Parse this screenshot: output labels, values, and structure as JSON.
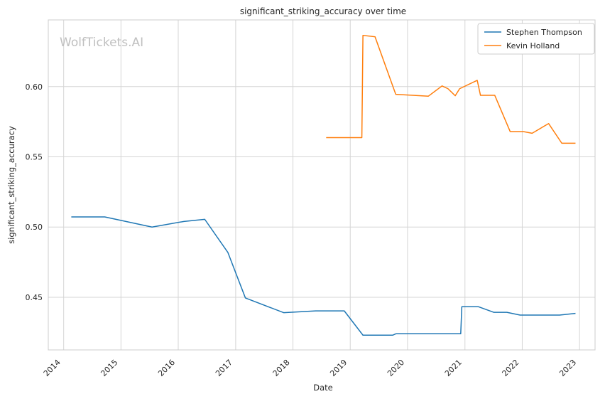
{
  "chart_data": {
    "type": "line",
    "title": "significant_striking_accuracy over time",
    "xlabel": "Date",
    "ylabel": "significant_striking_accuracy",
    "watermark": "WolfTickets.AI",
    "x_ticks": [
      "2014",
      "2015",
      "2016",
      "2017",
      "2018",
      "2019",
      "2020",
      "2021",
      "2022",
      "2023"
    ],
    "y_ticks": [
      "0.45",
      "0.50",
      "0.55",
      "0.60"
    ],
    "xlim": [
      "2013-09-25",
      "2023-04-10"
    ],
    "ylim": [
      0.4125,
      0.6475
    ],
    "grid": true,
    "legend_position": "top-right",
    "series": [
      {
        "name": "Stephen Thompson",
        "color": "#1f77b4",
        "points": [
          [
            "2014-02-22",
            0.5072
          ],
          [
            "2014-09-20",
            0.5072
          ],
          [
            "2015-07-18",
            0.5
          ],
          [
            "2016-02-06",
            0.504
          ],
          [
            "2016-06-18",
            0.5055
          ],
          [
            "2016-11-12",
            0.482
          ],
          [
            "2017-03-04",
            0.4495
          ],
          [
            "2017-11-04",
            0.439
          ],
          [
            "2018-05-26",
            0.4403
          ],
          [
            "2018-11-24",
            0.4403
          ],
          [
            "2019-03-23",
            0.423
          ],
          [
            "2019-09-28",
            0.423
          ],
          [
            "2019-10-19",
            0.424
          ],
          [
            "2020-12-05",
            0.424
          ],
          [
            "2020-12-12",
            0.4433
          ],
          [
            "2021-03-27",
            0.4433
          ],
          [
            "2021-07-03",
            0.4393
          ],
          [
            "2021-09-25",
            0.4393
          ],
          [
            "2021-12-18",
            0.4373
          ],
          [
            "2022-08-27",
            0.4373
          ],
          [
            "2022-12-03",
            0.4385
          ]
        ]
      },
      {
        "name": "Kevin Holland",
        "color": "#ff7f0e",
        "points": [
          [
            "2018-08-04",
            0.5637
          ],
          [
            "2019-03-16",
            0.5637
          ],
          [
            "2019-03-23",
            0.6365
          ],
          [
            "2019-06-08",
            0.6355
          ],
          [
            "2019-10-18",
            0.5945
          ],
          [
            "2020-05-13",
            0.5932
          ],
          [
            "2020-08-08",
            0.6005
          ],
          [
            "2020-09-15",
            0.5985
          ],
          [
            "2020-10-31",
            0.5935
          ],
          [
            "2020-11-28",
            0.5985
          ],
          [
            "2021-03-20",
            0.6045
          ],
          [
            "2021-04-10",
            0.5938
          ],
          [
            "2021-07-10",
            0.5938
          ],
          [
            "2021-10-16",
            0.568
          ],
          [
            "2022-01-08",
            0.568
          ],
          [
            "2022-03-05",
            0.5668
          ],
          [
            "2022-06-18",
            0.5737
          ],
          [
            "2022-09-10",
            0.5597
          ],
          [
            "2022-12-03",
            0.5597
          ]
        ]
      }
    ]
  }
}
